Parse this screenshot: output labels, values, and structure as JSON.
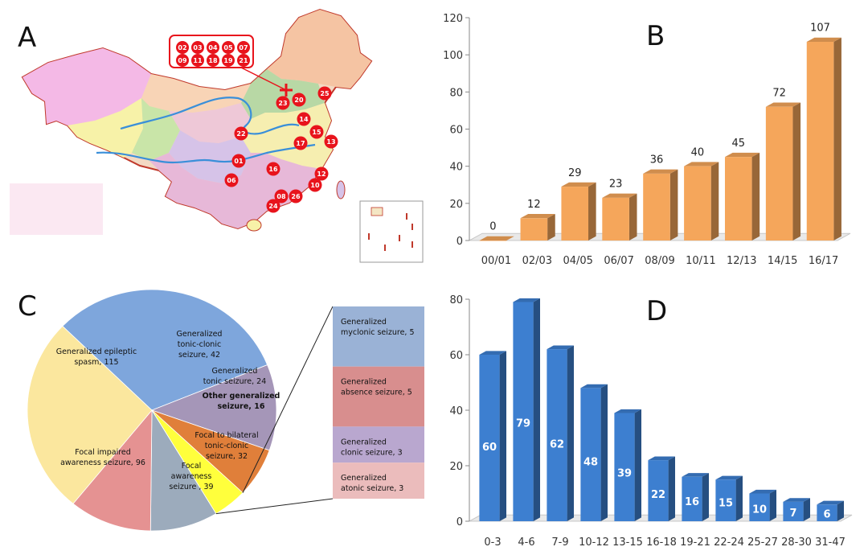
{
  "panels": {
    "a": "A",
    "b": "B",
    "c": "C",
    "d": "D"
  },
  "map": {
    "callout_codes": [
      "02",
      "03",
      "04",
      "05",
      "07",
      "09",
      "11",
      "18",
      "19",
      "21"
    ],
    "markers": [
      {
        "code": "23"
      },
      {
        "code": "20"
      },
      {
        "code": "25"
      },
      {
        "code": "14"
      },
      {
        "code": "22"
      },
      {
        "code": "15"
      },
      {
        "code": "17"
      },
      {
        "code": "13"
      },
      {
        "code": "01"
      },
      {
        "code": "16"
      },
      {
        "code": "12"
      },
      {
        "code": "06"
      },
      {
        "code": "10"
      },
      {
        "code": "08"
      },
      {
        "code": "26"
      },
      {
        "code": "24"
      }
    ],
    "colors": {
      "marker": "#e8141c",
      "river": "#3a8fd9",
      "border": "#c0392b"
    }
  },
  "chart_data": [
    {
      "panel": "B",
      "type": "bar",
      "categories": [
        "00/01",
        "02/03",
        "04/05",
        "06/07",
        "08/09",
        "10/11",
        "12/13",
        "14/15",
        "16/17"
      ],
      "values": [
        0,
        12,
        29,
        23,
        36,
        40,
        45,
        72,
        107
      ],
      "ylim": [
        0,
        120
      ],
      "yticks": [
        0,
        20,
        40,
        60,
        80,
        100,
        120
      ],
      "data_labels": true,
      "color": "#f5a65b"
    },
    {
      "panel": "C",
      "type": "pie",
      "slices": [
        {
          "label_lines": [
            "Generalized   epileptic",
            "spasm, 115"
          ],
          "value": 115,
          "color": "#7ea6dc"
        },
        {
          "label_lines": [
            "Generalized",
            "tonic-clonic",
            "seizure, 42"
          ],
          "value": 42,
          "color": "#a596b8"
        },
        {
          "label_lines": [
            "Generalized",
            "tonic seizure, 24"
          ],
          "value": 24,
          "color": "#e07f3a"
        },
        {
          "label_lines": [
            "Other generalized",
            "seizure, 16"
          ],
          "value": 16,
          "color": "#ffff3c"
        },
        {
          "label_lines": [
            "Focal to bilateral",
            "tonic-clonic",
            "seizure, 32"
          ],
          "value": 32,
          "color": "#9cabbc"
        },
        {
          "label_lines": [
            "Focal",
            "awareness",
            "seizure , 39"
          ],
          "value": 39,
          "color": "#e59292"
        },
        {
          "label_lines": [
            "Focal impaired",
            "awareness seizure, 96"
          ],
          "value": 96,
          "color": "#fbe79e"
        }
      ],
      "breakout": [
        {
          "label_lines": [
            "Generalized",
            "myclonic seizure, 5"
          ],
          "value": 5,
          "color": "#9ab2d6"
        },
        {
          "label_lines": [
            "Generalized",
            "absence seizure, 5"
          ],
          "value": 5,
          "color": "#d88e8e"
        },
        {
          "label_lines": [
            "Generalized",
            "clonic seizure, 3"
          ],
          "value": 3,
          "color": "#b9a7cf"
        },
        {
          "label_lines": [
            "Generalized",
            "atonic seizure, 3"
          ],
          "value": 3,
          "color": "#ebbcbc"
        }
      ]
    },
    {
      "panel": "D",
      "type": "bar",
      "categories": [
        "0-3",
        "4-6",
        "7-9",
        "10-12",
        "13-15",
        "16-18",
        "19-21",
        "22-24",
        "25-27",
        "28-30",
        "31-47"
      ],
      "values": [
        60,
        79,
        62,
        48,
        39,
        22,
        16,
        15,
        10,
        7,
        6
      ],
      "ylim": [
        0,
        80
      ],
      "yticks": [
        0,
        20,
        40,
        60,
        80
      ],
      "data_labels": true,
      "color": "#3d7fd0"
    }
  ]
}
